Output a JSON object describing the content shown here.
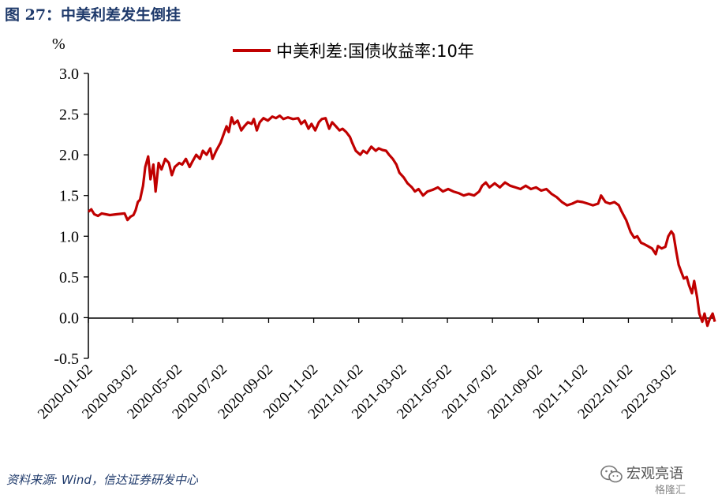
{
  "figure": {
    "title": "图 27：中美利差发生倒挂",
    "source": "资料来源: Wind，信达证券研发中心"
  },
  "watermark": {
    "text": "宏观亮语",
    "sub": "格隆汇",
    "icon": "wechat-icon"
  },
  "colors": {
    "series": "#c00000",
    "axis": "#000000",
    "title": "#1f3a6b"
  },
  "chart_data": {
    "type": "line",
    "unit_label": "%",
    "ylim": [
      -0.5,
      3.0
    ],
    "yticks": [
      "3.0",
      "2.5",
      "2.0",
      "1.5",
      "1.0",
      "0.5",
      "0.0",
      "-0.5"
    ],
    "ytick_values": [
      3.0,
      2.5,
      2.0,
      1.5,
      1.0,
      0.5,
      0.0,
      -0.5
    ],
    "xlim": [
      "2020-01-02",
      "2022-04-29"
    ],
    "xticks": [
      "2020-01-02",
      "2020-03-02",
      "2020-05-02",
      "2020-07-02",
      "2020-09-02",
      "2020-11-02",
      "2021-01-02",
      "2021-03-02",
      "2021-05-02",
      "2021-07-02",
      "2021-09-02",
      "2021-11-02",
      "2022-01-02",
      "2022-03-02"
    ],
    "grid": false,
    "legend_position": "top-center",
    "series": [
      {
        "name": "中美利差:国债收益率:10年",
        "color": "#c00000",
        "points": [
          [
            "2020-01-02",
            1.3
          ],
          [
            "2020-01-06",
            1.33
          ],
          [
            "2020-01-10",
            1.27
          ],
          [
            "2020-01-15",
            1.25
          ],
          [
            "2020-01-20",
            1.28
          ],
          [
            "2020-01-31",
            1.26
          ],
          [
            "2020-02-10",
            1.27
          ],
          [
            "2020-02-20",
            1.28
          ],
          [
            "2020-02-24",
            1.2
          ],
          [
            "2020-02-28",
            1.24
          ],
          [
            "2020-03-03",
            1.26
          ],
          [
            "2020-03-06",
            1.32
          ],
          [
            "2020-03-09",
            1.42
          ],
          [
            "2020-03-12",
            1.45
          ],
          [
            "2020-03-16",
            1.62
          ],
          [
            "2020-03-19",
            1.85
          ],
          [
            "2020-03-23",
            1.98
          ],
          [
            "2020-03-26",
            1.7
          ],
          [
            "2020-03-30",
            1.88
          ],
          [
            "2020-04-02",
            1.55
          ],
          [
            "2020-04-06",
            1.9
          ],
          [
            "2020-04-10",
            1.82
          ],
          [
            "2020-04-15",
            1.95
          ],
          [
            "2020-04-20",
            1.9
          ],
          [
            "2020-04-24",
            1.75
          ],
          [
            "2020-04-28",
            1.85
          ],
          [
            "2020-05-04",
            1.9
          ],
          [
            "2020-05-08",
            1.88
          ],
          [
            "2020-05-13",
            1.95
          ],
          [
            "2020-05-18",
            1.85
          ],
          [
            "2020-05-22",
            1.92
          ],
          [
            "2020-05-27",
            2.0
          ],
          [
            "2020-06-01",
            1.95
          ],
          [
            "2020-06-05",
            2.05
          ],
          [
            "2020-06-10",
            2.0
          ],
          [
            "2020-06-15",
            2.08
          ],
          [
            "2020-06-18",
            1.95
          ],
          [
            "2020-06-23",
            2.05
          ],
          [
            "2020-06-29",
            2.15
          ],
          [
            "2020-07-03",
            2.25
          ],
          [
            "2020-07-07",
            2.35
          ],
          [
            "2020-07-10",
            2.28
          ],
          [
            "2020-07-14",
            2.46
          ],
          [
            "2020-07-17",
            2.38
          ],
          [
            "2020-07-22",
            2.42
          ],
          [
            "2020-07-27",
            2.3
          ],
          [
            "2020-07-31",
            2.35
          ],
          [
            "2020-08-05",
            2.4
          ],
          [
            "2020-08-10",
            2.38
          ],
          [
            "2020-08-13",
            2.44
          ],
          [
            "2020-08-17",
            2.3
          ],
          [
            "2020-08-21",
            2.4
          ],
          [
            "2020-08-26",
            2.45
          ],
          [
            "2020-09-01",
            2.42
          ],
          [
            "2020-09-07",
            2.47
          ],
          [
            "2020-09-12",
            2.45
          ],
          [
            "2020-09-17",
            2.48
          ],
          [
            "2020-09-22",
            2.44
          ],
          [
            "2020-09-28",
            2.46
          ],
          [
            "2020-10-05",
            2.44
          ],
          [
            "2020-10-12",
            2.45
          ],
          [
            "2020-10-16",
            2.38
          ],
          [
            "2020-10-21",
            2.42
          ],
          [
            "2020-10-26",
            2.32
          ],
          [
            "2020-10-30",
            2.38
          ],
          [
            "2020-11-04",
            2.3
          ],
          [
            "2020-11-09",
            2.4
          ],
          [
            "2020-11-13",
            2.44
          ],
          [
            "2020-11-18",
            2.45
          ],
          [
            "2020-11-23",
            2.32
          ],
          [
            "2020-11-27",
            2.4
          ],
          [
            "2020-12-02",
            2.35
          ],
          [
            "2020-12-07",
            2.3
          ],
          [
            "2020-12-11",
            2.32
          ],
          [
            "2020-12-16",
            2.28
          ],
          [
            "2020-12-21",
            2.22
          ],
          [
            "2020-12-24",
            2.15
          ],
          [
            "2020-12-29",
            2.05
          ],
          [
            "2021-01-04",
            2.0
          ],
          [
            "2021-01-08",
            2.05
          ],
          [
            "2021-01-13",
            2.02
          ],
          [
            "2021-01-19",
            2.1
          ],
          [
            "2021-01-25",
            2.05
          ],
          [
            "2021-01-29",
            2.08
          ],
          [
            "2021-02-03",
            2.06
          ],
          [
            "2021-02-08",
            2.05
          ],
          [
            "2021-02-12",
            2.0
          ],
          [
            "2021-02-17",
            1.95
          ],
          [
            "2021-02-22",
            1.88
          ],
          [
            "2021-02-26",
            1.78
          ],
          [
            "2021-03-04",
            1.72
          ],
          [
            "2021-03-09",
            1.65
          ],
          [
            "2021-03-15",
            1.6
          ],
          [
            "2021-03-19",
            1.55
          ],
          [
            "2021-03-24",
            1.58
          ],
          [
            "2021-03-30",
            1.5
          ],
          [
            "2021-04-05",
            1.55
          ],
          [
            "2021-04-12",
            1.57
          ],
          [
            "2021-04-19",
            1.6
          ],
          [
            "2021-04-26",
            1.55
          ],
          [
            "2021-05-03",
            1.58
          ],
          [
            "2021-05-10",
            1.55
          ],
          [
            "2021-05-17",
            1.53
          ],
          [
            "2021-05-24",
            1.5
          ],
          [
            "2021-05-31",
            1.52
          ],
          [
            "2021-06-07",
            1.5
          ],
          [
            "2021-06-14",
            1.55
          ],
          [
            "2021-06-18",
            1.62
          ],
          [
            "2021-06-23",
            1.66
          ],
          [
            "2021-06-28",
            1.6
          ],
          [
            "2021-07-05",
            1.65
          ],
          [
            "2021-07-12",
            1.6
          ],
          [
            "2021-07-19",
            1.66
          ],
          [
            "2021-07-26",
            1.62
          ],
          [
            "2021-08-02",
            1.6
          ],
          [
            "2021-08-09",
            1.58
          ],
          [
            "2021-08-16",
            1.62
          ],
          [
            "2021-08-23",
            1.58
          ],
          [
            "2021-08-30",
            1.6
          ],
          [
            "2021-09-06",
            1.56
          ],
          [
            "2021-09-13",
            1.58
          ],
          [
            "2021-09-20",
            1.52
          ],
          [
            "2021-09-27",
            1.48
          ],
          [
            "2021-10-04",
            1.42
          ],
          [
            "2021-10-11",
            1.38
          ],
          [
            "2021-10-18",
            1.4
          ],
          [
            "2021-10-25",
            1.43
          ],
          [
            "2021-11-01",
            1.42
          ],
          [
            "2021-11-08",
            1.4
          ],
          [
            "2021-11-15",
            1.38
          ],
          [
            "2021-11-22",
            1.4
          ],
          [
            "2021-11-26",
            1.5
          ],
          [
            "2021-12-02",
            1.42
          ],
          [
            "2021-12-08",
            1.4
          ],
          [
            "2021-12-14",
            1.42
          ],
          [
            "2021-12-20",
            1.38
          ],
          [
            "2021-12-24",
            1.3
          ],
          [
            "2021-12-30",
            1.2
          ],
          [
            "2022-01-05",
            1.05
          ],
          [
            "2022-01-10",
            0.98
          ],
          [
            "2022-01-14",
            1.0
          ],
          [
            "2022-01-19",
            0.92
          ],
          [
            "2022-01-24",
            0.9
          ],
          [
            "2022-01-28",
            0.88
          ],
          [
            "2022-02-03",
            0.85
          ],
          [
            "2022-02-08",
            0.78
          ],
          [
            "2022-02-11",
            0.88
          ],
          [
            "2022-02-16",
            0.85
          ],
          [
            "2022-02-21",
            0.87
          ],
          [
            "2022-02-25",
            1.0
          ],
          [
            "2022-03-01",
            1.06
          ],
          [
            "2022-03-04",
            1.02
          ],
          [
            "2022-03-08",
            0.8
          ],
          [
            "2022-03-11",
            0.65
          ],
          [
            "2022-03-15",
            0.55
          ],
          [
            "2022-03-18",
            0.48
          ],
          [
            "2022-03-22",
            0.5
          ],
          [
            "2022-03-25",
            0.4
          ],
          [
            "2022-03-29",
            0.3
          ],
          [
            "2022-04-01",
            0.45
          ],
          [
            "2022-04-05",
            0.25
          ],
          [
            "2022-04-08",
            0.05
          ],
          [
            "2022-04-12",
            -0.05
          ],
          [
            "2022-04-15",
            0.05
          ],
          [
            "2022-04-19",
            -0.1
          ],
          [
            "2022-04-22",
            -0.02
          ],
          [
            "2022-04-26",
            0.05
          ],
          [
            "2022-04-29",
            -0.05
          ]
        ]
      }
    ]
  }
}
